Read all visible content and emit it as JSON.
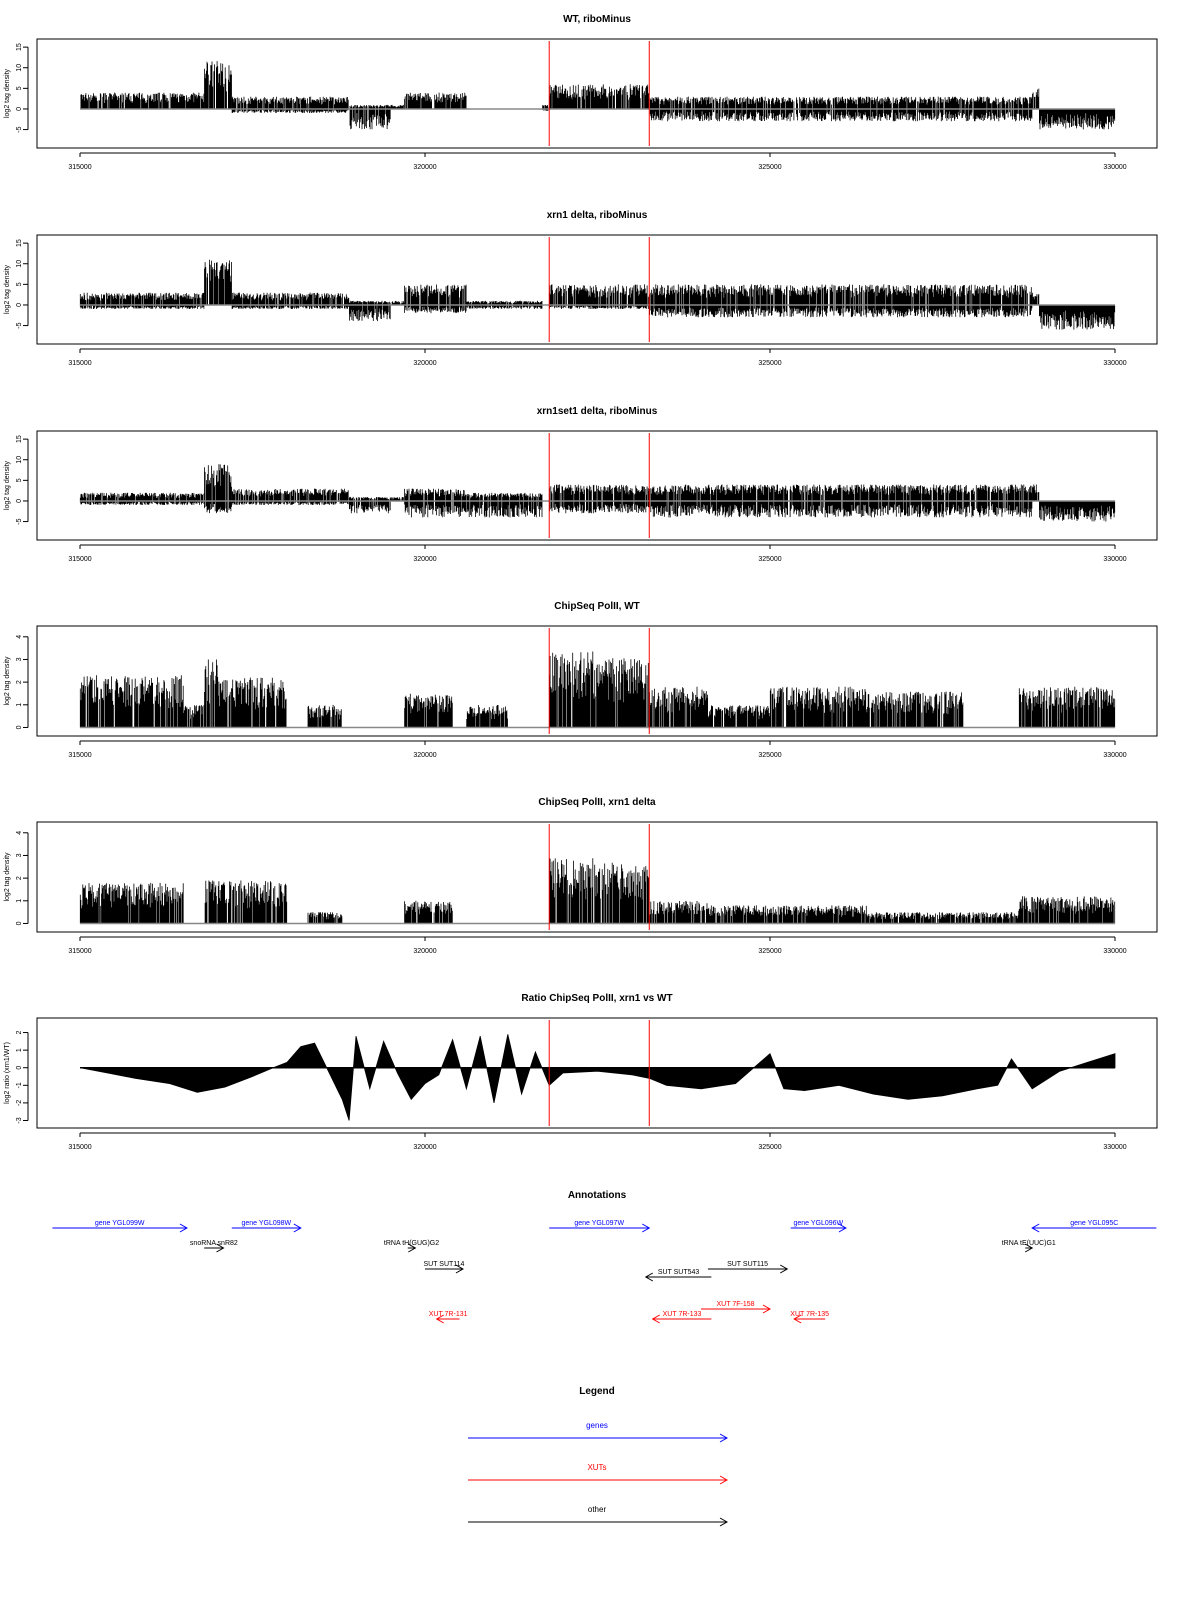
{
  "colors": {
    "axis": "#000000",
    "bars": "#000000",
    "baseline": "#888888",
    "highlight": "#ff0000",
    "genes": "#0000ff",
    "xuts": "#ff0000",
    "other": "#000000"
  },
  "chart_data": [
    {
      "type": "bar",
      "title": "WT, riboMinus",
      "ylabel": "log2 tag density",
      "xlim": [
        315000,
        330000
      ],
      "ylim": [
        -8.5,
        16
      ],
      "yticks": [
        -5,
        0,
        5,
        10,
        15
      ],
      "xticks": [
        315000,
        320000,
        325000,
        330000
      ],
      "xtick_labels": [
        "315000",
        "320000",
        "325000",
        "330000"
      ],
      "highlight_lines": [
        321800,
        323250
      ],
      "series": [
        {
          "segments": [
            {
              "x0": 315000,
              "x1": 316800,
              "lo": 0,
              "hi": 4
            },
            {
              "x0": 316800,
              "x1": 317200,
              "lo": 0,
              "hi": 12
            },
            {
              "x0": 317200,
              "x1": 318900,
              "lo": -1,
              "hi": 3
            },
            {
              "x0": 318900,
              "x1": 319500,
              "lo": -5,
              "hi": 1
            },
            {
              "x0": 319500,
              "x1": 319700,
              "lo": 0,
              "hi": 1
            },
            {
              "x0": 319700,
              "x1": 320600,
              "lo": 0,
              "hi": 4
            },
            {
              "x0": 321700,
              "x1": 321800,
              "lo": -0.5,
              "hi": 1
            },
            {
              "x0": 321800,
              "x1": 323250,
              "lo": 0,
              "hi": 6
            },
            {
              "x0": 323250,
              "x1": 328800,
              "lo": -3,
              "hi": 3
            },
            {
              "x0": 328800,
              "x1": 328900,
              "lo": 0,
              "hi": 5
            },
            {
              "x0": 328900,
              "x1": 330000,
              "lo": -5,
              "hi": 0
            }
          ]
        }
      ]
    },
    {
      "type": "bar",
      "title": "xrn1 delta, riboMinus",
      "ylabel": "log2 tag density",
      "xlim": [
        315000,
        330000
      ],
      "ylim": [
        -8.5,
        16
      ],
      "yticks": [
        -5,
        0,
        5,
        10,
        15
      ],
      "xticks": [
        315000,
        320000,
        325000,
        330000
      ],
      "xtick_labels": [
        "315000",
        "320000",
        "325000",
        "330000"
      ],
      "highlight_lines": [
        321800,
        323250
      ],
      "series": [
        {
          "segments": [
            {
              "x0": 315000,
              "x1": 316800,
              "lo": -1,
              "hi": 3
            },
            {
              "x0": 316800,
              "x1": 317200,
              "lo": 0,
              "hi": 11
            },
            {
              "x0": 317200,
              "x1": 318900,
              "lo": -1,
              "hi": 3
            },
            {
              "x0": 318900,
              "x1": 319500,
              "lo": -4,
              "hi": 1
            },
            {
              "x0": 319500,
              "x1": 319700,
              "lo": 0,
              "hi": 1
            },
            {
              "x0": 319700,
              "x1": 320600,
              "lo": -2,
              "hi": 5
            },
            {
              "x0": 320600,
              "x1": 321700,
              "lo": -1,
              "hi": 1
            },
            {
              "x0": 321800,
              "x1": 323250,
              "lo": -1,
              "hi": 5
            },
            {
              "x0": 323250,
              "x1": 328800,
              "lo": -3,
              "hi": 5
            },
            {
              "x0": 328800,
              "x1": 328900,
              "lo": 0,
              "hi": 3
            },
            {
              "x0": 328900,
              "x1": 330000,
              "lo": -6,
              "hi": 0
            }
          ]
        }
      ]
    },
    {
      "type": "bar",
      "title": "xrn1set1 delta, riboMinus",
      "ylabel": "log2 tag density",
      "xlim": [
        315000,
        330000
      ],
      "ylim": [
        -8.5,
        16
      ],
      "yticks": [
        -5,
        0,
        5,
        10,
        15
      ],
      "xticks": [
        315000,
        320000,
        325000,
        330000
      ],
      "xtick_labels": [
        "315000",
        "320000",
        "325000",
        "330000"
      ],
      "highlight_lines": [
        321800,
        323250
      ],
      "series": [
        {
          "segments": [
            {
              "x0": 315000,
              "x1": 316800,
              "lo": -1,
              "hi": 2
            },
            {
              "x0": 316800,
              "x1": 317200,
              "lo": -3,
              "hi": 9
            },
            {
              "x0": 317200,
              "x1": 318900,
              "lo": -1,
              "hi": 3
            },
            {
              "x0": 318900,
              "x1": 319500,
              "lo": -3,
              "hi": 1
            },
            {
              "x0": 319500,
              "x1": 319700,
              "lo": 0,
              "hi": 1
            },
            {
              "x0": 319700,
              "x1": 320600,
              "lo": -4,
              "hi": 3
            },
            {
              "x0": 320600,
              "x1": 321700,
              "lo": -4,
              "hi": 2
            },
            {
              "x0": 321800,
              "x1": 323250,
              "lo": -3,
              "hi": 4
            },
            {
              "x0": 323250,
              "x1": 328800,
              "lo": -4,
              "hi": 4
            },
            {
              "x0": 328800,
              "x1": 328900,
              "lo": 0,
              "hi": 4
            },
            {
              "x0": 328900,
              "x1": 330000,
              "lo": -5,
              "hi": 0
            }
          ]
        }
      ]
    },
    {
      "type": "bar",
      "title": "ChipSeq PolII, WT",
      "ylabel": "log2 tag density",
      "xlim": [
        315000,
        330000
      ],
      "ylim": [
        -0.2,
        4.3
      ],
      "yticks": [
        0,
        1,
        2,
        3,
        4
      ],
      "xticks": [
        315000,
        320000,
        325000,
        330000
      ],
      "xtick_labels": [
        "315000",
        "320000",
        "325000",
        "330000"
      ],
      "highlight_lines": [
        321800,
        323250
      ],
      "series": [
        {
          "segments": [
            {
              "x0": 315000,
              "x1": 316500,
              "lo": 0,
              "hi": 2.3
            },
            {
              "x0": 316500,
              "x1": 316800,
              "lo": 0,
              "hi": 1
            },
            {
              "x0": 316800,
              "x1": 317000,
              "lo": 0,
              "hi": 3
            },
            {
              "x0": 317000,
              "x1": 318000,
              "lo": 0,
              "hi": 2.2
            },
            {
              "x0": 318300,
              "x1": 318800,
              "lo": 0,
              "hi": 1
            },
            {
              "x0": 319700,
              "x1": 320400,
              "lo": 0,
              "hi": 1.5
            },
            {
              "x0": 320600,
              "x1": 321200,
              "lo": 0,
              "hi": 1
            },
            {
              "x0": 321800,
              "x1": 322500,
              "lo": 0,
              "hi": 3.4
            },
            {
              "x0": 322500,
              "x1": 323250,
              "lo": 0,
              "hi": 3.1
            },
            {
              "x0": 323250,
              "x1": 324100,
              "lo": 0,
              "hi": 1.8
            },
            {
              "x0": 324100,
              "x1": 325000,
              "lo": 0,
              "hi": 1
            },
            {
              "x0": 325000,
              "x1": 326400,
              "lo": 0,
              "hi": 1.8
            },
            {
              "x0": 326400,
              "x1": 327800,
              "lo": 0,
              "hi": 1.6
            },
            {
              "x0": 328600,
              "x1": 330000,
              "lo": 0,
              "hi": 1.8
            }
          ]
        }
      ]
    },
    {
      "type": "bar",
      "title": "ChipSeq PolII, xrn1 delta",
      "ylabel": "log2 tag density",
      "xlim": [
        315000,
        330000
      ],
      "ylim": [
        -0.2,
        4.3
      ],
      "yticks": [
        0,
        1,
        2,
        3,
        4
      ],
      "xticks": [
        315000,
        320000,
        325000,
        330000
      ],
      "xtick_labels": [
        "315000",
        "320000",
        "325000",
        "330000"
      ],
      "highlight_lines": [
        321800,
        323250
      ],
      "series": [
        {
          "segments": [
            {
              "x0": 315000,
              "x1": 316500,
              "lo": 0,
              "hi": 1.8
            },
            {
              "x0": 316800,
              "x1": 318000,
              "lo": 0,
              "hi": 1.9
            },
            {
              "x0": 318300,
              "x1": 318800,
              "lo": 0,
              "hi": 0.5
            },
            {
              "x0": 319700,
              "x1": 320400,
              "lo": 0,
              "hi": 1
            },
            {
              "x0": 321800,
              "x1": 322500,
              "lo": 0,
              "hi": 2.9
            },
            {
              "x0": 322500,
              "x1": 323250,
              "lo": 0,
              "hi": 2.7
            },
            {
              "x0": 323250,
              "x1": 324100,
              "lo": 0,
              "hi": 1
            },
            {
              "x0": 324100,
              "x1": 326400,
              "lo": 0,
              "hi": 0.8
            },
            {
              "x0": 326400,
              "x1": 328600,
              "lo": 0,
              "hi": 0.5
            },
            {
              "x0": 328600,
              "x1": 330000,
              "lo": 0,
              "hi": 1.2
            }
          ]
        }
      ]
    },
    {
      "type": "area",
      "title": "Ratio ChipSeq PolII, xrn1 vs WT",
      "ylabel": "log2 ratio (xrn1/WT)",
      "xlim": [
        315000,
        330000
      ],
      "ylim": [
        -3.2,
        2.6
      ],
      "yticks": [
        -3,
        -2,
        -1,
        0,
        1,
        2
      ],
      "xticks": [
        315000,
        320000,
        325000,
        330000
      ],
      "xtick_labels": [
        "315000",
        "320000",
        "325000",
        "330000"
      ],
      "highlight_lines": [
        321800,
        323250
      ],
      "x": [
        315000,
        315400,
        315800,
        316300,
        316700,
        317100,
        317500,
        317800,
        318000,
        318200,
        318400,
        318600,
        318800,
        318900,
        319000,
        319200,
        319400,
        319600,
        319800,
        320000,
        320200,
        320400,
        320600,
        320800,
        321000,
        321200,
        321400,
        321600,
        321800,
        322000,
        322500,
        323000,
        323250,
        323500,
        324000,
        324500,
        325000,
        325200,
        325500,
        326000,
        326500,
        327000,
        327500,
        328000,
        328300,
        328500,
        328800,
        329200,
        329600,
        330000
      ],
      "values": [
        0,
        -0.3,
        -0.6,
        -0.9,
        -1.4,
        -1.1,
        -0.5,
        0,
        0.3,
        1.2,
        1.4,
        -0.2,
        -1.8,
        -3.0,
        1.8,
        -1.2,
        1.5,
        -0.3,
        -1.8,
        -0.9,
        -0.4,
        1.6,
        -1.2,
        1.8,
        -2.0,
        1.9,
        -1.5,
        0.9,
        -1.0,
        -0.3,
        -0.2,
        -0.4,
        -0.6,
        -1.0,
        -1.2,
        -0.9,
        0.8,
        -1.2,
        -1.3,
        -1.0,
        -1.5,
        -1.8,
        -1.6,
        -1.2,
        -1.0,
        0.5,
        -1.2,
        -0.2,
        0.3,
        0.8
      ]
    },
    {
      "type": "annotation",
      "title": "Annotations",
      "xlim": [
        315000,
        330000
      ],
      "features": [
        {
          "label": "gene YGL099W",
          "start": 314600,
          "end": 316550,
          "row": 0,
          "color": "genes"
        },
        {
          "label": "gene YGL098W",
          "start": 317200,
          "end": 318200,
          "row": 0,
          "color": "genes"
        },
        {
          "label": "gene YGL097W",
          "start": 321800,
          "end": 323250,
          "row": 0,
          "color": "genes"
        },
        {
          "label": "gene YGL096W",
          "start": 325300,
          "end": 326100,
          "row": 0,
          "color": "genes"
        },
        {
          "label": "gene YGL095C",
          "start": 330600,
          "end": 328800,
          "row": 0,
          "color": "genes"
        },
        {
          "label": "snoRNA snR82",
          "start": 316800,
          "end": 317080,
          "row": 1,
          "color": "other"
        },
        {
          "label": "tRNA tH(GUG)G2",
          "start": 319750,
          "end": 319860,
          "row": 1,
          "color": "other"
        },
        {
          "label": "tRNA tE(UUC)G1",
          "start": 328700,
          "end": 328800,
          "row": 1,
          "color": "other"
        },
        {
          "label": "SUT SUT114",
          "start": 320000,
          "end": 320550,
          "row": 2,
          "color": "other"
        },
        {
          "label": "SUT SUT115",
          "start": 324100,
          "end": 325250,
          "row": 2,
          "color": "other"
        },
        {
          "label": "SUT SUT543",
          "start": 324150,
          "end": 323200,
          "row": 3,
          "color": "other"
        },
        {
          "label": "XUT 7R-131",
          "start": 320500,
          "end": 320170,
          "row": 5,
          "color": "xuts"
        },
        {
          "label": "XUT 7F-158",
          "start": 324000,
          "end": 325000,
          "row": 4,
          "color": "xuts"
        },
        {
          "label": "XUT 7R-133",
          "start": 324150,
          "end": 323300,
          "row": 5,
          "color": "xuts"
        },
        {
          "label": "XUT 7R-135",
          "start": 325800,
          "end": 325350,
          "row": 5,
          "color": "xuts"
        }
      ]
    }
  ],
  "legend": {
    "title": "Legend",
    "items": [
      {
        "label": "genes",
        "color": "genes"
      },
      {
        "label": "XUTs",
        "color": "xuts"
      },
      {
        "label": "other",
        "color": "other"
      }
    ]
  }
}
